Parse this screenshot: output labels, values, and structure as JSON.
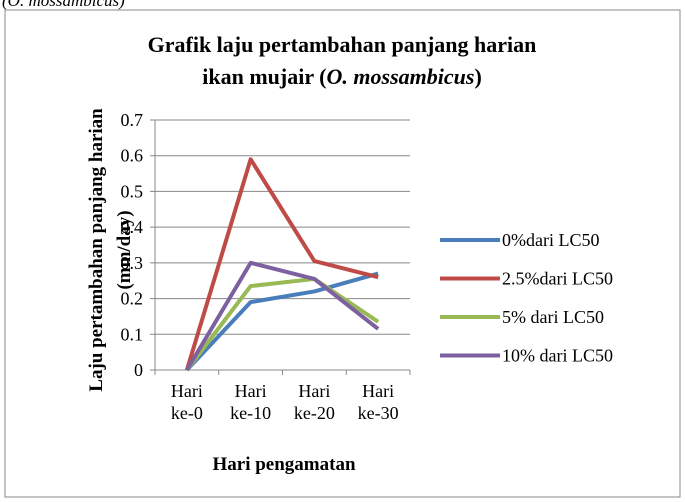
{
  "caption": "(O. mossambicus)",
  "chart_data": {
    "type": "line",
    "title": [
      "Grafik laju pertambahan panjang harian",
      "ikan mujair (",
      "O. mossambicus",
      ")"
    ],
    "x_label": "Hari pengamatan",
    "y_label": [
      "Laju pertambahan panjang harian",
      "(mm/day)"
    ],
    "categories": [
      "Hari ke-0",
      "Hari ke-10",
      "Hari ke-20",
      "Hari ke-30"
    ],
    "series": [
      {
        "name": "0%dari LC50",
        "color": "#4a7ebb",
        "values": [
          0,
          0.19,
          0.22,
          0.27
        ]
      },
      {
        "name": "2.5%dari LC50",
        "color": "#be4b48",
        "values": [
          0,
          0.59,
          0.305,
          0.26
        ]
      },
      {
        "name": "5% dari LC50",
        "color": "#98b954",
        "values": [
          0,
          0.235,
          0.255,
          0.135
        ]
      },
      {
        "name": "10% dari LC50",
        "color": "#7d60a0",
        "values": [
          0,
          0.3,
          0.255,
          0.115
        ]
      }
    ],
    "ylim": [
      0,
      0.7
    ],
    "yticks": [
      0,
      0.1,
      0.2,
      0.3,
      0.4,
      0.5,
      0.6,
      0.7
    ],
    "grid": true,
    "legend": "right"
  }
}
